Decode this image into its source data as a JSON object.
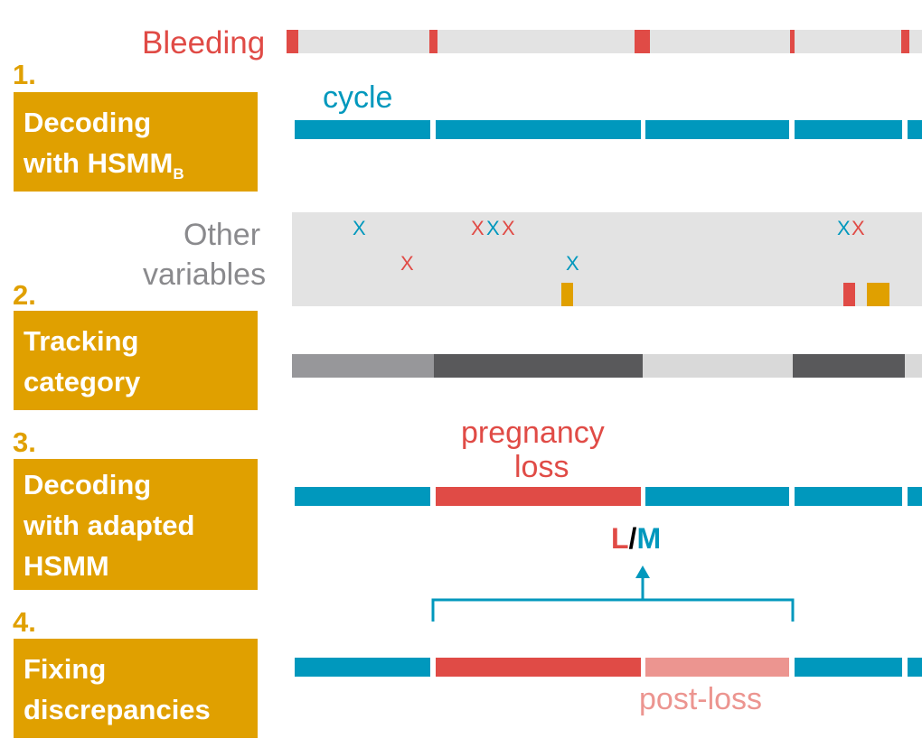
{
  "steps": [
    {
      "number": "1.",
      "lines": [
        "Decoding",
        "with HSMM"
      ],
      "subscript": "B"
    },
    {
      "number": "2.",
      "lines": [
        "Tracking",
        "category"
      ]
    },
    {
      "number": "3.",
      "lines": [
        "Decoding",
        "with adapted",
        "HSMM"
      ]
    },
    {
      "number": "4.",
      "lines": [
        "Fixing",
        "discrepancies"
      ]
    }
  ],
  "labels": {
    "bleeding": "Bleeding",
    "cycle": "cycle",
    "other_variables_line1": "Other",
    "other_variables_line2": "variables",
    "pregnancy_loss_line1": "pregnancy",
    "pregnancy_loss_line2": "loss",
    "post_loss": "post-loss",
    "lm_l": "L",
    "lm_slash": "/",
    "lm_m": "M",
    "marker_x": "X"
  },
  "colors": {
    "step_accent": "#e0a000",
    "bleeding": "#e04b46",
    "cycle": "#0098bd",
    "pregnancy_loss": "#e04b46",
    "post_loss": "#ec9590",
    "track_background": "#e3e3e3",
    "category_light": "#d9d9d9",
    "category_mid": "#97979a",
    "category_dark": "#59595b",
    "other_label": "#8a8a8d",
    "marker_orange": "#e0a000"
  },
  "other_variables_markers": [
    {
      "glyph": "X",
      "color": "blue"
    },
    {
      "glyph": "X",
      "color": "red"
    },
    {
      "glyph": "X",
      "color": "blue"
    },
    {
      "glyph": "X",
      "color": "red"
    },
    {
      "glyph": "X",
      "color": "blue"
    },
    {
      "glyph": "X",
      "color": "red"
    },
    {
      "glyph": "X",
      "color": "blue"
    },
    {
      "glyph": "X",
      "color": "red"
    },
    {
      "glyph": "X",
      "color": "blue"
    }
  ],
  "tracking_category_segments": [
    "mid",
    "dark",
    "light",
    "dark",
    "light"
  ],
  "row3_segments": [
    "cycle",
    "pregnancy loss",
    "cycle",
    "cycle",
    "cycle"
  ],
  "row4_segments": [
    "cycle",
    "pregnancy loss",
    "post-loss",
    "cycle",
    "cycle"
  ]
}
